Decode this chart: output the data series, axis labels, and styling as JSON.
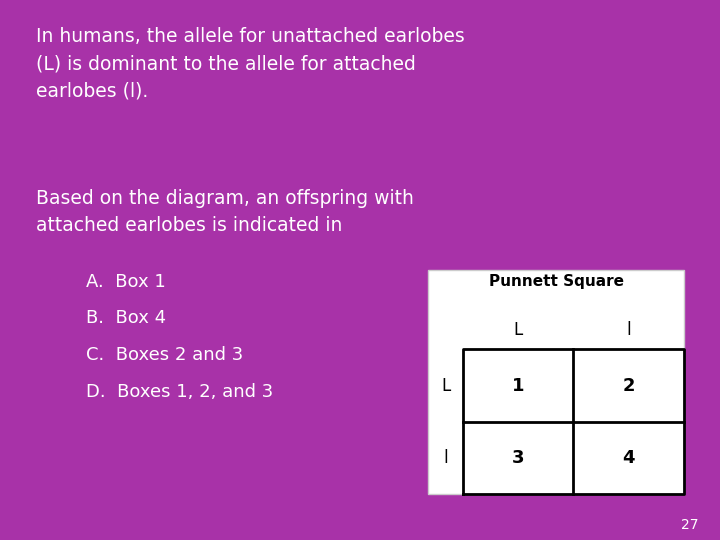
{
  "bg_color": "#A832A8",
  "text_color": "#FFFFFF",
  "dark_color": "#000000",
  "paragraph1": "In humans, the allele for unattached earlobes\n(L) is dominant to the allele for attached\nearlobes (l).",
  "paragraph2": "Based on the diagram, an offspring with\nattached earlobes is indicated in",
  "choices": [
    "A.  Box 1",
    "B.  Box 4",
    "C.  Boxes 2 and 3",
    "D.  Boxes 1, 2, and 3"
  ],
  "punnett_title": "Punnett Square",
  "col_headers": [
    "L",
    "l"
  ],
  "row_headers": [
    "L",
    "l"
  ],
  "cell_values": [
    [
      "1",
      "2"
    ],
    [
      "3",
      "4"
    ]
  ],
  "page_number": "27",
  "font_size_para": 13.5,
  "font_size_choices": 13,
  "font_size_punnett_title": 11,
  "font_size_punnett_header": 12,
  "font_size_punnett_cell": 13,
  "font_size_page": 10
}
